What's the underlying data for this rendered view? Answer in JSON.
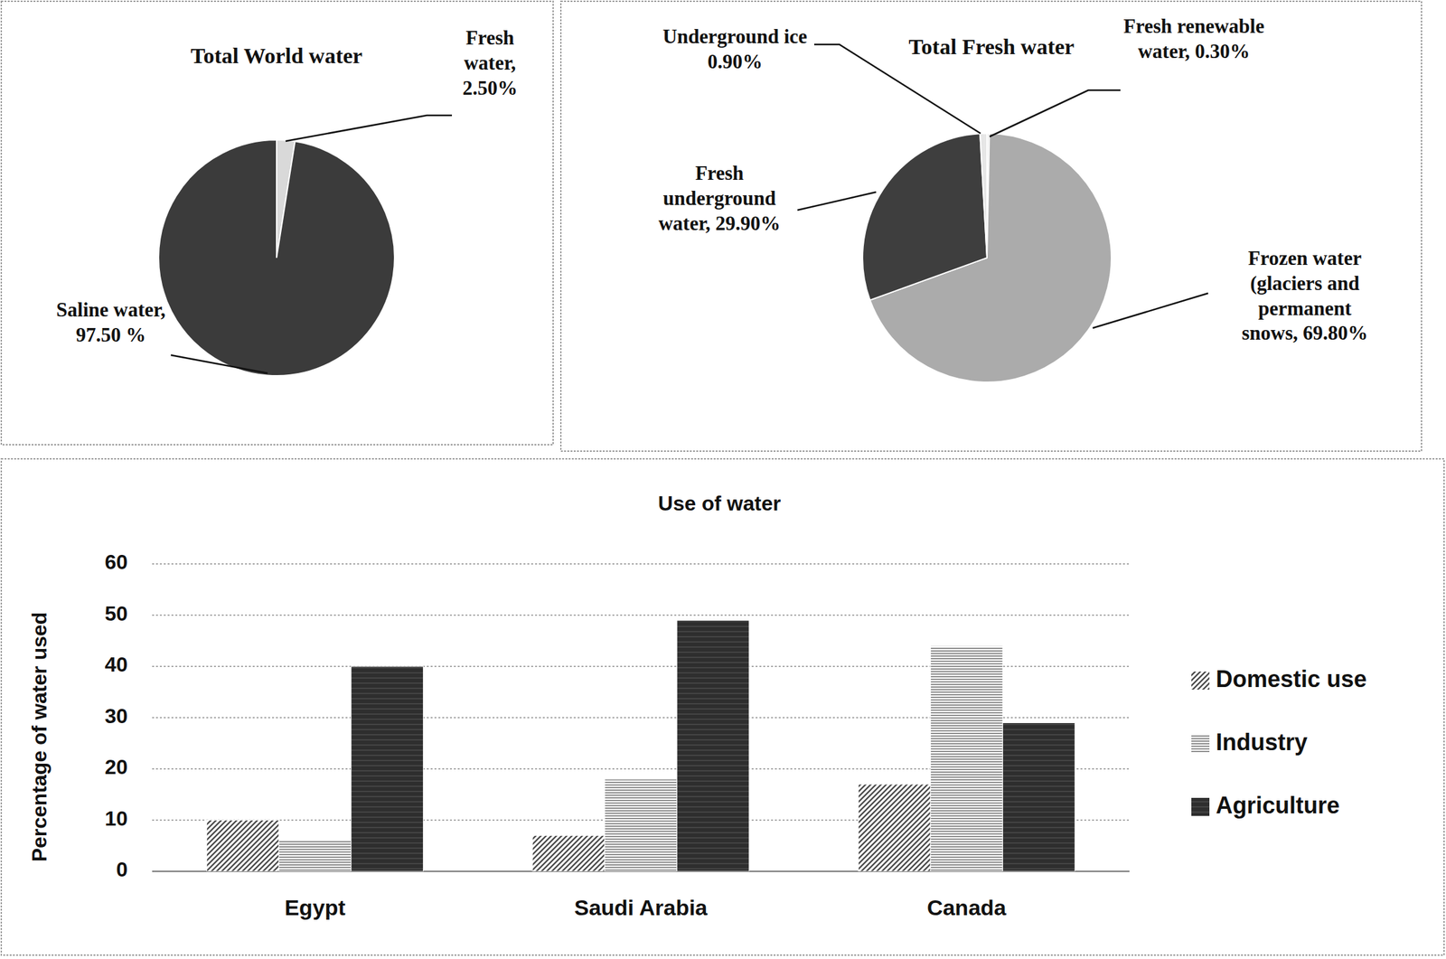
{
  "chart_data": [
    {
      "type": "pie",
      "title": "Total World water",
      "categories": [
        "Fresh water, 2.50%",
        "Saline water, 97.50 %"
      ],
      "values": [
        2.5,
        97.5
      ],
      "colors": [
        "#d9d9d9",
        "#3b3b3b"
      ]
    },
    {
      "type": "pie",
      "title": "Total Fresh water",
      "categories": [
        "Fresh renewable water, 0.30%",
        "Frozen water (glaciers and permanent snows, 69.80%",
        "Fresh underground water, 29.90%",
        "Underground ice 0.90%"
      ],
      "values": [
        0.3,
        69.8,
        29.9,
        0.9
      ],
      "colors": [
        "#e6e6e6",
        "#ababab",
        "#3e3e3e",
        "#e6e6e6"
      ]
    },
    {
      "type": "bar",
      "title": "Use of water",
      "ylabel": "Percentage of water used",
      "categories": [
        "Egypt",
        "Saudi Arabia",
        "Canada"
      ],
      "series": [
        {
          "name": "Domestic use",
          "color": "#4a4a4a",
          "values": [
            10,
            7,
            17
          ]
        },
        {
          "name": "Industry",
          "color": "#6a6a6a",
          "values": [
            6,
            18,
            44
          ]
        },
        {
          "name": "Agriculture",
          "color": "#2e2e2e",
          "values": [
            40,
            49,
            29
          ]
        }
      ],
      "ylim": [
        0,
        60
      ],
      "yticks": [
        0,
        10,
        20,
        30,
        40,
        50,
        60
      ],
      "grid": true,
      "legend": "right"
    }
  ]
}
